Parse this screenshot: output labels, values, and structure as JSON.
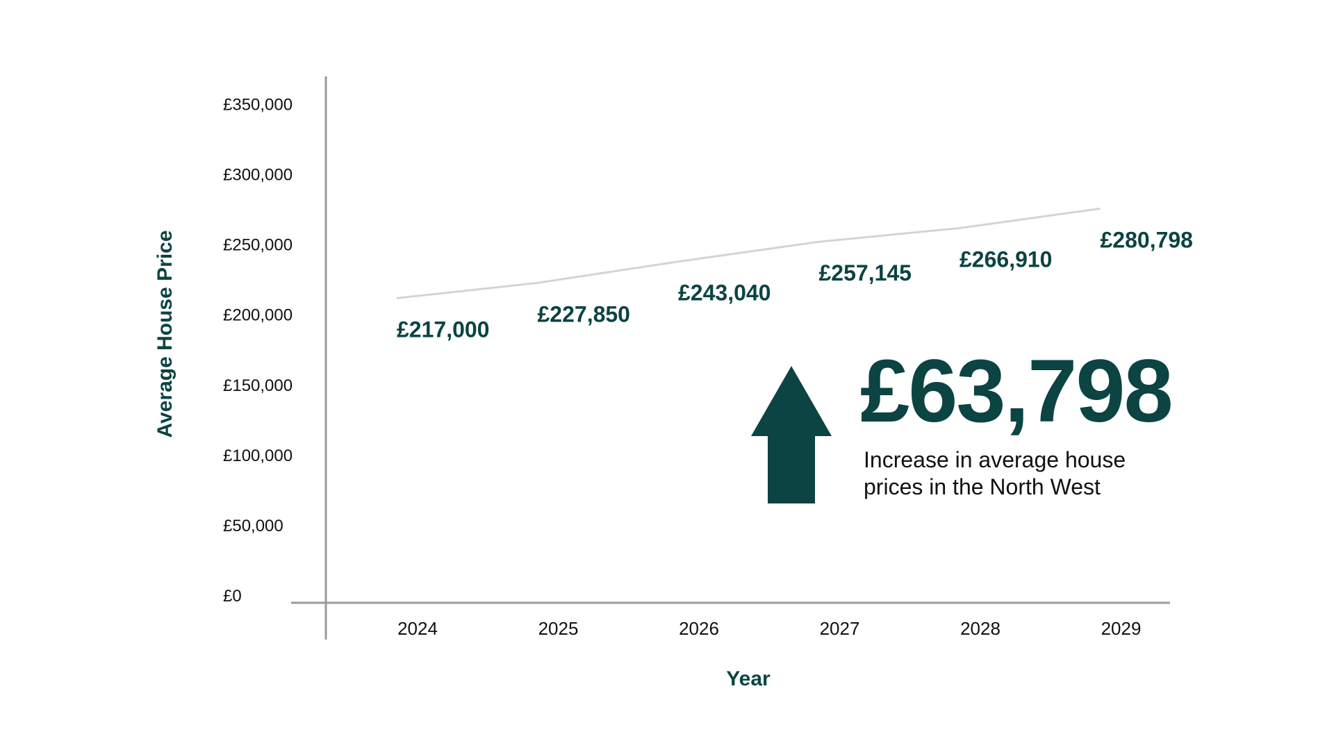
{
  "colors": {
    "accent": "#0b4442",
    "line": "#cfd6d3",
    "axis": "#9a9a9a",
    "text": "#111111"
  },
  "chart_data": {
    "type": "line",
    "title": "",
    "xlabel": "Year",
    "ylabel": "Average House Price",
    "x": [
      "2024",
      "2025",
      "2026",
      "2027",
      "2028",
      "2029"
    ],
    "series": [
      {
        "values": [
          217000,
          227850,
          243040,
          257145,
          266910,
          280798
        ]
      }
    ],
    "data_labels": [
      "£217,000",
      "£227,850",
      "£243,040",
      "£257,145",
      "£266,910",
      "£280,798"
    ],
    "ylim": [
      0,
      375000
    ],
    "y_ticks": [
      0,
      50000,
      100000,
      150000,
      200000,
      250000,
      300000,
      350000
    ],
    "y_tick_labels": [
      "£0",
      "£50,000",
      "£100,000",
      "£150,000",
      "£200,000",
      "£250,000",
      "£300,000",
      "£350,000"
    ],
    "grid": false,
    "legend": "none"
  },
  "callout": {
    "value": "£63,798",
    "caption": "Increase in average house prices in the North West",
    "icon": "up-arrow-icon"
  }
}
